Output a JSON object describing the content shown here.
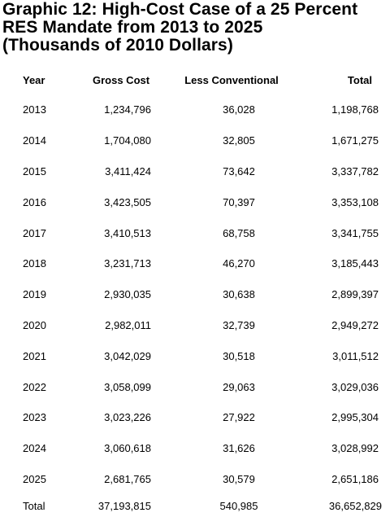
{
  "chart_data": {
    "type": "table",
    "title_lines": [
      "Graphic 12: High-Cost Case of a 25 Percent",
      "RES Mandate from 2013 to 2025",
      "(Thousands of 2010 Dollars)"
    ],
    "columns": [
      "Year",
      "Gross Cost",
      "Less Conventional",
      "Total"
    ],
    "rows": [
      {
        "year": "2013",
        "gross": "1,234,796",
        "less": "36,028",
        "total": "1,198,768"
      },
      {
        "year": "2014",
        "gross": "1,704,080",
        "less": "32,805",
        "total": "1,671,275"
      },
      {
        "year": "2015",
        "gross": "3,411,424",
        "less": "73,642",
        "total": "3,337,782"
      },
      {
        "year": "2016",
        "gross": "3,423,505",
        "less": "70,397",
        "total": "3,353,108"
      },
      {
        "year": "2017",
        "gross": "3,410,513",
        "less": "68,758",
        "total": "3,341,755"
      },
      {
        "year": "2018",
        "gross": "3,231,713",
        "less": "46,270",
        "total": "3,185,443"
      },
      {
        "year": "2019",
        "gross": "2,930,035",
        "less": "30,638",
        "total": "2,899,397"
      },
      {
        "year": "2020",
        "gross": "2,982,011",
        "less": "32,739",
        "total": "2,949,272"
      },
      {
        "year": "2021",
        "gross": "3,042,029",
        "less": "30,518",
        "total": "3,011,512"
      },
      {
        "year": "2022",
        "gross": "3,058,099",
        "less": "29,063",
        "total": "3,029,036"
      },
      {
        "year": "2023",
        "gross": "3,023,226",
        "less": "27,922",
        "total": "2,995,304"
      },
      {
        "year": "2024",
        "gross": "3,060,618",
        "less": "31,626",
        "total": "3,028,992"
      },
      {
        "year": "2025",
        "gross": "2,681,765",
        "less": "30,579",
        "total": "2,651,186"
      }
    ],
    "totals": {
      "year": "Total",
      "gross": "37,193,815",
      "less": "540,985",
      "total": "36,652,829"
    }
  }
}
